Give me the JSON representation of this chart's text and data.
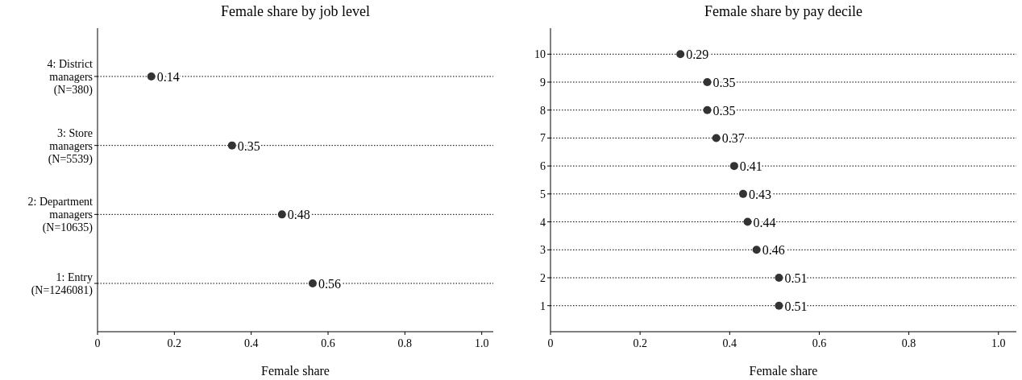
{
  "chart_data": [
    {
      "type": "scatter",
      "orientation": "horizontal",
      "title": "Female share by job level",
      "xlabel": "Female share",
      "categories": [
        "4: District\nmanagers\n(N=380)",
        "3: Store\nmanagers\n(N=5539)",
        "2: Department\nmanagers\n(N=10635)",
        "1: Entry\n(N=1246081)"
      ],
      "values": [
        0.14,
        0.35,
        0.48,
        0.56
      ],
      "color": "#333333",
      "xlim": [
        0,
        1.03
      ],
      "xticks": [
        0,
        0.2,
        0.4,
        0.6,
        0.8,
        {
          "value": 1,
          "label": "1.0"
        }
      ],
      "grid": "y",
      "marker": "circle",
      "data_labels": true
    },
    {
      "type": "scatter",
      "orientation": "horizontal",
      "title": "Female share by pay decile",
      "xlabel": "Female share",
      "categories": [
        "10",
        "9",
        "8",
        "7",
        "6",
        "5",
        "4",
        "3",
        "2",
        "1"
      ],
      "values": [
        0.29,
        0.35,
        0.35,
        0.37,
        0.41,
        0.43,
        0.44,
        0.46,
        0.51,
        0.51
      ],
      "color": "#333333",
      "xlim": [
        0,
        1.04
      ],
      "xticks": [
        0,
        0.2,
        0.4,
        0.6,
        0.8,
        {
          "value": 1,
          "label": "1.0"
        }
      ],
      "grid": "y",
      "marker": "circle",
      "data_labels": true
    }
  ]
}
